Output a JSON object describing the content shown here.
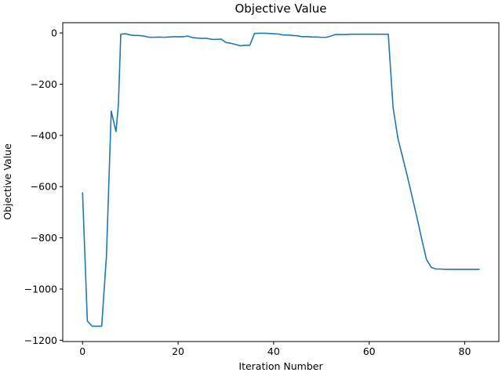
{
  "chart_data": {
    "type": "line",
    "title": "Objective Value",
    "xlabel": "Iteration Number",
    "ylabel": "Objective Value",
    "xlim": [
      -4.15,
      87.15
    ],
    "ylim": [
      -1205,
      40
    ],
    "xticks": [
      0,
      20,
      40,
      60,
      80
    ],
    "yticks": [
      0,
      -200,
      -400,
      -600,
      -800,
      -1000,
      -1200
    ],
    "xtick_labels": [
      "0",
      "20",
      "40",
      "60",
      "80"
    ],
    "ytick_labels": [
      "0",
      "−200",
      "−400",
      "−600",
      "−800",
      "−1000",
      "−1200"
    ],
    "grid": false,
    "series": [
      {
        "color": "#1f77b4",
        "x": [
          0,
          1,
          2,
          3,
          4,
          5,
          6,
          7,
          7.5,
          8,
          9,
          10,
          11,
          12,
          13,
          14,
          15,
          16,
          17,
          18,
          19,
          20,
          21,
          22,
          23,
          24,
          25,
          26,
          27,
          28,
          29,
          30,
          31,
          32,
          33,
          34,
          35,
          36,
          37,
          38,
          39,
          40,
          41,
          42,
          43,
          44,
          45,
          46,
          47,
          48,
          49,
          50,
          51,
          52,
          53,
          54,
          55,
          56,
          57,
          58,
          59,
          60,
          61,
          62,
          63,
          64,
          65,
          66,
          67,
          68,
          69,
          70,
          71,
          72,
          73,
          74,
          75,
          76,
          77,
          78,
          79,
          80,
          81,
          82,
          83
        ],
        "values": [
          -625,
          -1125,
          -1145,
          -1145,
          -1145,
          -870,
          -305,
          -385,
          -280,
          -5,
          -3,
          -8,
          -10,
          -10,
          -13,
          -17,
          -17,
          -16,
          -17,
          -16,
          -15,
          -15,
          -15,
          -12,
          -18,
          -20,
          -21,
          -21,
          -25,
          -25,
          -24,
          -37,
          -40,
          -45,
          -50,
          -48,
          -48,
          -2,
          -1,
          -1,
          -2,
          -3,
          -4,
          -8,
          -8,
          -10,
          -11,
          -15,
          -14,
          -16,
          -16,
          -17,
          -17,
          -12,
          -6,
          -6,
          -6,
          -5,
          -5,
          -5,
          -5,
          -5,
          -5,
          -5,
          -5,
          -5,
          -290,
          -410,
          -485,
          -560,
          -640,
          -720,
          -805,
          -885,
          -915,
          -922,
          -922,
          -923,
          -923,
          -923,
          -923,
          -923,
          -923,
          -923,
          -923
        ]
      }
    ]
  }
}
